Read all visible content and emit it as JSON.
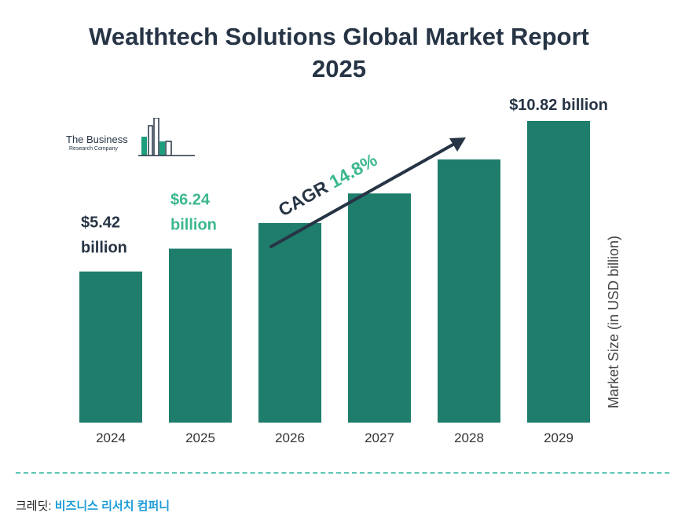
{
  "title": {
    "line1": "Wealthtech Solutions Global Market Report",
    "line2": "2025"
  },
  "logo": {
    "line1": "The Business",
    "line2": "Research Company"
  },
  "chart_data": {
    "type": "bar",
    "categories": [
      "2024",
      "2025",
      "2026",
      "2027",
      "2028",
      "2029"
    ],
    "values": [
      5.42,
      6.24,
      7.16,
      8.22,
      9.44,
      10.82
    ],
    "ylim": [
      0,
      10.82
    ],
    "ylabel": "Market Size (in USD billion)",
    "xlabel": "",
    "bar_color": "#1f7d6c",
    "highlight_color": "#3cb88e",
    "text_color": "#263445",
    "value_labels": [
      {
        "index": 0,
        "value": "$5.42",
        "unit": "billion",
        "highlight": false
      },
      {
        "index": 1,
        "value": "$6.24",
        "unit": "billion",
        "highlight": true
      },
      {
        "index": 5,
        "value": "$10.82 billion",
        "unit": "",
        "highlight": false
      }
    ],
    "annotation": {
      "label": "CAGR",
      "value": "14.8%"
    }
  },
  "footer": {
    "credit_prefix": "크레딧: ",
    "credit_link": "비즈니스 리서치 컴퍼니"
  }
}
